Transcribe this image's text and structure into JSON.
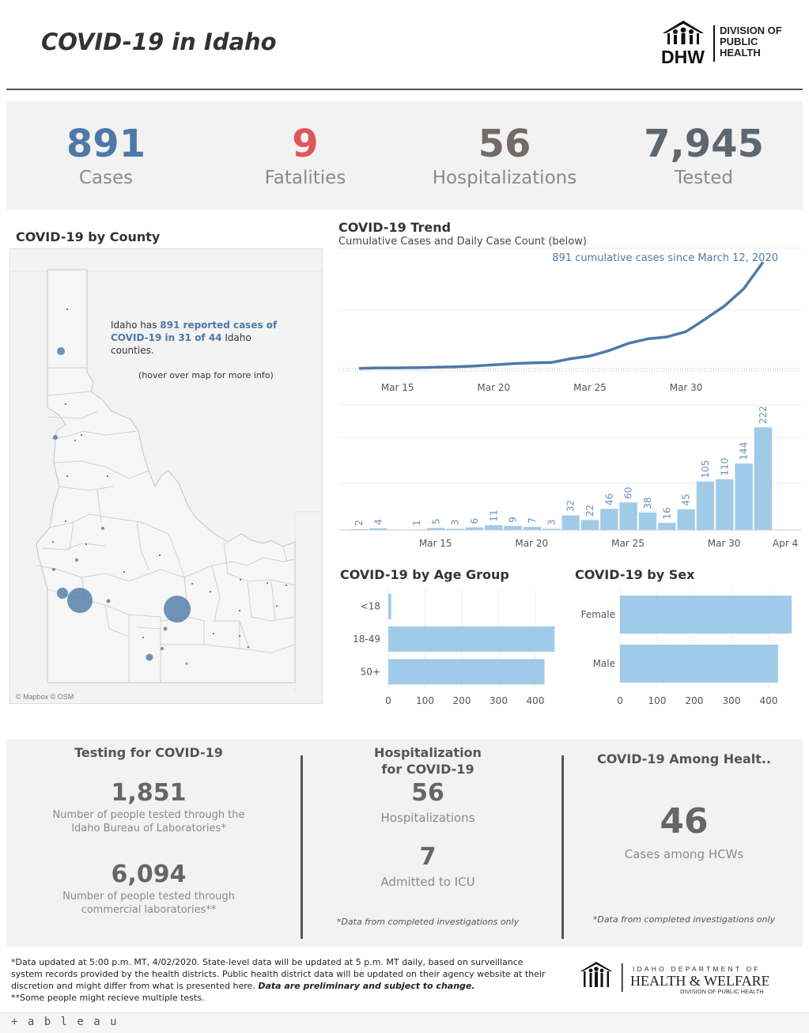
{
  "header": {
    "title": "COVID-19 in Idaho",
    "logo_letters": "DHW",
    "logo_line1": "DIVISION OF",
    "logo_line2": "PUBLIC",
    "logo_line3": "HEALTH"
  },
  "kpis": [
    {
      "value": "891",
      "label": "Cases",
      "color": "#4e79a7"
    },
    {
      "value": "9",
      "label": "Fatalities",
      "color": "#e15759"
    },
    {
      "value": "56",
      "label": "Hospitalizations",
      "color": "#736b68"
    },
    {
      "value": "7,945",
      "label": "Tested",
      "color": "#5f6670"
    }
  ],
  "map": {
    "title": "COVID-19 by County",
    "note_pre": "Idaho has ",
    "note_hl": "891 reported cases of COVID-19 in 31 of 44",
    "note_post": " Idaho counties.",
    "hover": "(hover over map for more info)",
    "credit": "© Mapbox © OSM"
  },
  "trend": {
    "title": "COVID-19 Trend",
    "subtitle": "Cumulative Cases and Daily Case Count (below)",
    "annotation": "891 cumulative cases since March 12, 2020"
  },
  "age": {
    "title": "COVID-19 by Age Group"
  },
  "sex": {
    "title": "COVID-19 by Sex"
  },
  "chart_data": [
    {
      "type": "line",
      "name_id": "cumulative",
      "x": [
        "Mar 13",
        "Mar 14",
        "Mar 15",
        "Mar 16",
        "Mar 17",
        "Mar 18",
        "Mar 19",
        "Mar 20",
        "Mar 21",
        "Mar 22",
        "Mar 23",
        "Mar 24",
        "Mar 25",
        "Mar 26",
        "Mar 27",
        "Mar 28",
        "Mar 29",
        "Mar 30",
        "Mar 31",
        "Apr 1",
        "Apr 2",
        "Apr 3"
      ],
      "values": [
        2,
        6,
        6,
        7,
        12,
        15,
        21,
        32,
        41,
        48,
        51,
        83,
        105,
        151,
        211,
        249,
        265,
        310,
        415,
        525,
        669,
        891
      ],
      "xticks": [
        "Mar 15",
        "Mar 20",
        "Mar 25",
        "Mar 30"
      ],
      "ylim": [
        0,
        900
      ],
      "color": "#4e79a7"
    },
    {
      "type": "bar",
      "name_id": "daily",
      "categories": [
        "Mar 13",
        "Mar 14",
        "Mar 15",
        "Mar 16",
        "Mar 17",
        "Mar 18",
        "Mar 19",
        "Mar 20",
        "Mar 21",
        "Mar 22",
        "Mar 23",
        "Mar 24",
        "Mar 25",
        "Mar 26",
        "Mar 27",
        "Mar 28",
        "Mar 29",
        "Mar 30",
        "Mar 31",
        "Apr 1",
        "Apr 2",
        "Apr 3"
      ],
      "values": [
        2,
        4,
        0,
        1,
        5,
        3,
        6,
        11,
        9,
        7,
        3,
        32,
        22,
        46,
        60,
        38,
        16,
        45,
        105,
        110,
        144,
        222
      ],
      "labels": [
        "2",
        "4",
        "",
        "1",
        "5",
        "3",
        "6",
        "11",
        "9",
        "7",
        "3",
        "32",
        "22",
        "46",
        "60",
        "38",
        "16",
        "45",
        "105",
        "110",
        "144",
        "222"
      ],
      "xticks": [
        "Mar 15",
        "Mar 20",
        "Mar 25",
        "Mar 30",
        "Apr 4"
      ],
      "ylim": [
        0,
        240
      ],
      "color": "#a0cbe8"
    },
    {
      "type": "bar",
      "name_id": "age",
      "orientation": "horizontal",
      "categories": [
        "<18",
        "18-49",
        "50+"
      ],
      "values": [
        8,
        452,
        425
      ],
      "xticks": [
        "0",
        "100",
        "200",
        "300",
        "400"
      ],
      "xlim": [
        0,
        470
      ],
      "color": "#a0cbe8"
    },
    {
      "type": "bar",
      "name_id": "sex",
      "orientation": "horizontal",
      "categories": [
        "Female",
        "Male"
      ],
      "values": [
        462,
        425
      ],
      "xticks": [
        "0",
        "100",
        "200",
        "300",
        "400"
      ],
      "xlim": [
        0,
        480
      ],
      "color": "#a0cbe8"
    }
  ],
  "testing": {
    "title": "Testing for COVID-19",
    "lab_value": "1,851",
    "lab_text": "Number of people tested through the Idaho Bureau of Laboratories*",
    "comm_value": "6,094",
    "comm_text": "Number of people tested through commercial laboratories**"
  },
  "hospital": {
    "title_line1": "Hospitalization",
    "title_line2": "for COVID-19",
    "hosp_value": "56",
    "hosp_label": "Hospitalizations",
    "icu_value": "7",
    "icu_label": "Admitted to ICU",
    "note": "*Data from completed investigations only"
  },
  "hcw": {
    "title": "COVID-19 Among Healt..",
    "value": "46",
    "label": "Cases among HCWs",
    "note": "*Data from completed investigations only"
  },
  "footer": {
    "note1": "*Data updated at 5:00 p.m. MT, 4/02/2020. State-level data will be updated at 5 p.m. MT daily, based on surveillance system records provided by the health districts. Public health district data will be updated on their agency website at their discretion and might differ from what is presented here. ",
    "note1_bold": "Data are preliminary and subject to change.",
    "note2": "**Some people might recieve multiple tests.",
    "logo_line1": "IDAHO DEPARTMENT OF",
    "logo_line2": "HEALTH & WELFARE",
    "logo_line3": "DIVISION OF PUBLIC HEALTH",
    "tableau": "+ a b l e a u"
  }
}
